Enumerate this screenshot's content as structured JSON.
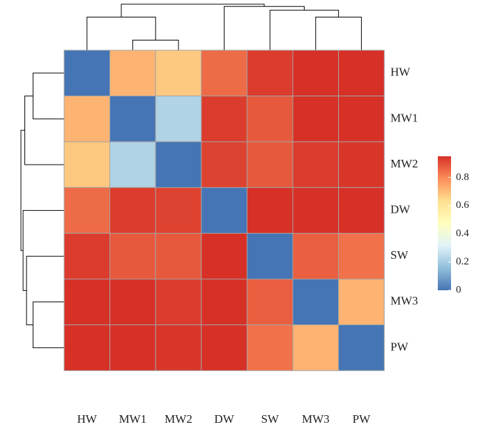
{
  "chart_data": {
    "type": "heatmap",
    "title": "",
    "xlabel": "",
    "ylabel": "",
    "row_labels": [
      "HW",
      "MW1",
      "MW2",
      "DW",
      "SW",
      "MW3",
      "PW"
    ],
    "col_labels": [
      "HW",
      "MW1",
      "MW2",
      "DW",
      "SW",
      "MW3",
      "PW"
    ],
    "values": [
      [
        0.0,
        0.72,
        0.68,
        0.85,
        0.93,
        0.95,
        0.96
      ],
      [
        0.72,
        0.0,
        0.22,
        0.93,
        0.88,
        0.95,
        0.95
      ],
      [
        0.68,
        0.22,
        0.0,
        0.92,
        0.88,
        0.93,
        0.94
      ],
      [
        0.85,
        0.93,
        0.92,
        0.0,
        0.95,
        0.99,
        0.98
      ],
      [
        0.93,
        0.88,
        0.88,
        0.95,
        0.0,
        0.87,
        0.84
      ],
      [
        0.95,
        0.95,
        0.93,
        0.99,
        0.87,
        0.0,
        0.72
      ],
      [
        0.96,
        0.95,
        0.94,
        0.98,
        0.84,
        0.72,
        0.0
      ]
    ],
    "color_range": [
      0,
      0.95
    ],
    "colorscale": [
      "#4575b4",
      "#91bfdb",
      "#e0f3f8",
      "#ffffbf",
      "#fee090",
      "#fc8d59",
      "#d73027"
    ],
    "colorbar_ticks": [
      0,
      0.2,
      0.4,
      0.6,
      0.8
    ],
    "colorbar_tick_labels": [
      "0",
      "0.2",
      "0.4",
      "0.6",
      "0.8"
    ],
    "legend_position": "right",
    "cell_border_color": "#a3a3a3",
    "row_dendrogram": [
      {
        "a": 0,
        "b": 1,
        "height": 0.72
      },
      {
        "a": 7,
        "b": 2,
        "height": 0.91
      },
      {
        "a": 5,
        "b": 6,
        "height": 0.72
      },
      {
        "a": 9,
        "b": 4,
        "height": 0.87
      },
      {
        "a": 3,
        "b": 10,
        "height": 0.95
      },
      {
        "a": 8,
        "b": 11,
        "height": 1.0
      }
    ],
    "col_dendrogram": [
      {
        "a": 1,
        "b": 2,
        "height": 0.22
      },
      {
        "a": 0,
        "b": 7,
        "height": 0.72
      },
      {
        "a": 5,
        "b": 6,
        "height": 0.72
      },
      {
        "a": 4,
        "b": 9,
        "height": 0.87
      },
      {
        "a": 3,
        "b": 10,
        "height": 0.95
      },
      {
        "a": 8,
        "b": 11,
        "height": 1.0
      }
    ]
  }
}
